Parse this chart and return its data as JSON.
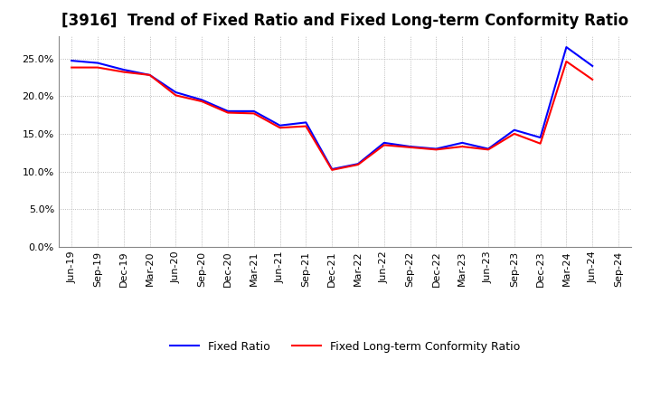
{
  "title": "[3916]  Trend of Fixed Ratio and Fixed Long-term Conformity Ratio",
  "x_labels": [
    "Jun-19",
    "Sep-19",
    "Dec-19",
    "Mar-20",
    "Jun-20",
    "Sep-20",
    "Dec-20",
    "Mar-21",
    "Jun-21",
    "Sep-21",
    "Dec-21",
    "Mar-22",
    "Jun-22",
    "Sep-22",
    "Dec-22",
    "Mar-23",
    "Jun-23",
    "Sep-23",
    "Dec-23",
    "Mar-24",
    "Jun-24",
    "Sep-24"
  ],
  "fixed_ratio": [
    0.247,
    0.244,
    0.235,
    0.228,
    0.205,
    0.195,
    0.18,
    0.18,
    0.161,
    0.165,
    0.103,
    0.11,
    0.138,
    0.133,
    0.13,
    0.138,
    0.13,
    0.155,
    0.145,
    0.265,
    0.24,
    null
  ],
  "fixed_lt_ratio": [
    0.238,
    0.238,
    0.232,
    0.228,
    0.201,
    0.193,
    0.178,
    0.177,
    0.158,
    0.16,
    0.102,
    0.109,
    0.135,
    0.132,
    0.129,
    0.133,
    0.129,
    0.15,
    0.137,
    0.246,
    0.222,
    null
  ],
  "fixed_ratio_color": "#0000FF",
  "fixed_lt_ratio_color": "#FF0000",
  "background_color": "#FFFFFF",
  "plot_bg_color": "#FFFFFF",
  "grid_color": "#AAAAAA",
  "ylim": [
    0.0,
    0.28
  ],
  "yticks": [
    0.0,
    0.05,
    0.1,
    0.15,
    0.2,
    0.25
  ],
  "line_width": 1.5,
  "title_fontsize": 12,
  "legend_fontsize": 9,
  "tick_fontsize": 8
}
